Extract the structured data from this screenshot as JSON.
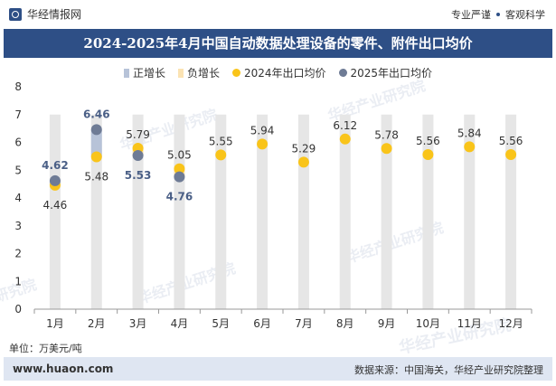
{
  "header": {
    "site_name": "华经情报网",
    "tag1": "专业严谨",
    "tag2": "客观科学"
  },
  "title": "2024-2025年4月中国自动数据处理设备的零件、附件出口均价",
  "legend": {
    "pos": "正增长",
    "neg": "负增长",
    "s2024": "2024年出口均价",
    "s2025": "2025年出口均价"
  },
  "unit": "单位：万美元/吨",
  "footer": {
    "url": "www.huaon.com",
    "source": "数据来源：中国海关，华经产业研究院整理"
  },
  "watermarks": [
    "华经产业研究院",
    "华经产业研究院",
    "华经产业研究院",
    "华经产业研究院",
    "华经产业研究院",
    "华经产业研究院"
  ],
  "colors": {
    "title_bg": "#2e4f86",
    "bar_bg": "#e6e6e6",
    "pos": "#b7c3d8",
    "neg": "#fbe3b3",
    "s2024": "#f9c41a",
    "s2025": "#6e7b95",
    "label2025": "#4a5f86"
  },
  "chart_data": {
    "type": "line",
    "categories": [
      "1月",
      "2月",
      "3月",
      "4月",
      "5月",
      "6月",
      "7月",
      "8月",
      "9月",
      "10月",
      "11月",
      "12月"
    ],
    "series": [
      {
        "name": "2024年出口均价",
        "values": [
          4.46,
          5.48,
          5.79,
          5.05,
          5.55,
          5.94,
          5.29,
          6.12,
          5.78,
          5.56,
          5.84,
          5.56
        ]
      },
      {
        "name": "2025年出口均价",
        "values": [
          4.62,
          6.46,
          5.53,
          4.76,
          null,
          null,
          null,
          null,
          null,
          null,
          null,
          null
        ]
      }
    ],
    "yticks": [
      "0",
      "1",
      "2",
      "3",
      "4",
      "5",
      "6",
      "7",
      "8"
    ],
    "ylim": [
      0,
      8
    ],
    "bar_top": 7
  }
}
